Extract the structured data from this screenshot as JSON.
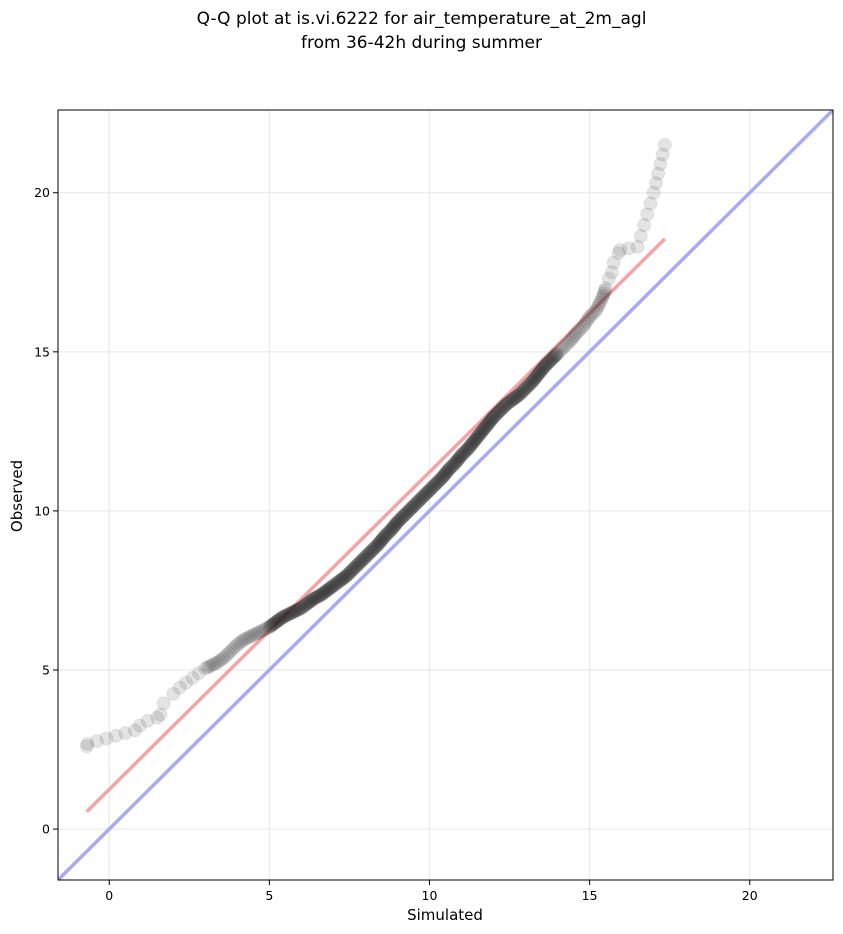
{
  "chart_data": {
    "type": "scatter",
    "title_lines": [
      "Q-Q plot at is.vi.6222 for air_temperature_at_2m_agl",
      "from 36-42h during summer"
    ],
    "xlabel": "Simulated",
    "ylabel": "Observed",
    "xlim": [
      -1.6,
      22.6
    ],
    "ylim": [
      -1.6,
      22.6
    ],
    "xticks": [
      0,
      5,
      10,
      15,
      20
    ],
    "yticks": [
      0,
      5,
      10,
      15,
      20
    ],
    "grid": true,
    "identity_line": {
      "name": "1:1 line",
      "color": "#aaaaf2",
      "from": [
        -1.6,
        -1.6
      ],
      "to": [
        22.6,
        22.6
      ]
    },
    "fit_line": {
      "name": "fit",
      "color": "#f4a4a4",
      "from": [
        -0.7,
        0.55
      ],
      "to": [
        17.35,
        18.55
      ]
    },
    "points_color": "#222222",
    "points": [
      [
        -0.7,
        2.6
      ],
      [
        -0.68,
        2.68
      ],
      [
        0.8,
        3.1
      ],
      [
        0.95,
        3.25
      ],
      [
        1.2,
        3.4
      ],
      [
        1.5,
        3.5
      ],
      [
        1.6,
        3.6
      ],
      [
        1.7,
        3.95
      ],
      [
        2.0,
        4.25
      ],
      [
        2.2,
        4.45
      ],
      [
        2.4,
        4.6
      ],
      [
        2.6,
        4.75
      ],
      [
        2.8,
        4.9
      ],
      [
        3.0,
        5.05
      ],
      [
        3.2,
        5.15
      ],
      [
        3.4,
        5.25
      ],
      [
        3.6,
        5.4
      ],
      [
        3.8,
        5.6
      ],
      [
        4.0,
        5.8
      ],
      [
        4.2,
        5.95
      ],
      [
        4.4,
        6.05
      ],
      [
        4.6,
        6.15
      ],
      [
        4.8,
        6.25
      ],
      [
        5.0,
        6.35
      ],
      [
        5.2,
        6.5
      ],
      [
        5.4,
        6.65
      ],
      [
        5.6,
        6.75
      ],
      [
        5.8,
        6.85
      ],
      [
        6.0,
        6.95
      ],
      [
        6.2,
        7.1
      ],
      [
        6.4,
        7.25
      ],
      [
        6.6,
        7.35
      ],
      [
        6.8,
        7.5
      ],
      [
        7.0,
        7.65
      ],
      [
        7.2,
        7.8
      ],
      [
        7.4,
        7.95
      ],
      [
        7.6,
        8.15
      ],
      [
        7.8,
        8.35
      ],
      [
        8.0,
        8.55
      ],
      [
        8.2,
        8.75
      ],
      [
        8.4,
        8.95
      ],
      [
        8.6,
        9.2
      ],
      [
        8.8,
        9.4
      ],
      [
        9.0,
        9.65
      ],
      [
        9.2,
        9.85
      ],
      [
        9.4,
        10.05
      ],
      [
        9.6,
        10.25
      ],
      [
        9.8,
        10.45
      ],
      [
        10.0,
        10.65
      ],
      [
        10.2,
        10.85
      ],
      [
        10.4,
        11.05
      ],
      [
        10.6,
        11.3
      ],
      [
        10.8,
        11.5
      ],
      [
        11.0,
        11.75
      ],
      [
        11.2,
        11.95
      ],
      [
        11.4,
        12.2
      ],
      [
        11.6,
        12.45
      ],
      [
        11.8,
        12.7
      ],
      [
        12.0,
        12.95
      ],
      [
        12.2,
        13.15
      ],
      [
        12.4,
        13.35
      ],
      [
        12.6,
        13.5
      ],
      [
        12.8,
        13.65
      ],
      [
        13.0,
        13.85
      ],
      [
        13.2,
        14.05
      ],
      [
        13.4,
        14.3
      ],
      [
        13.6,
        14.55
      ],
      [
        13.8,
        14.75
      ],
      [
        14.0,
        14.95
      ],
      [
        14.2,
        15.15
      ],
      [
        14.4,
        15.35
      ],
      [
        14.6,
        15.6
      ],
      [
        14.8,
        15.8
      ],
      [
        15.0,
        16.1
      ],
      [
        15.2,
        16.3
      ],
      [
        15.4,
        16.7
      ],
      [
        15.5,
        17.0
      ],
      [
        15.6,
        17.3
      ],
      [
        15.7,
        17.5
      ],
      [
        15.75,
        17.8
      ],
      [
        15.9,
        18.1
      ],
      [
        15.95,
        18.2
      ],
      [
        16.5,
        18.3
      ],
      [
        17.0,
        20.0
      ],
      [
        17.35,
        21.5
      ]
    ]
  }
}
